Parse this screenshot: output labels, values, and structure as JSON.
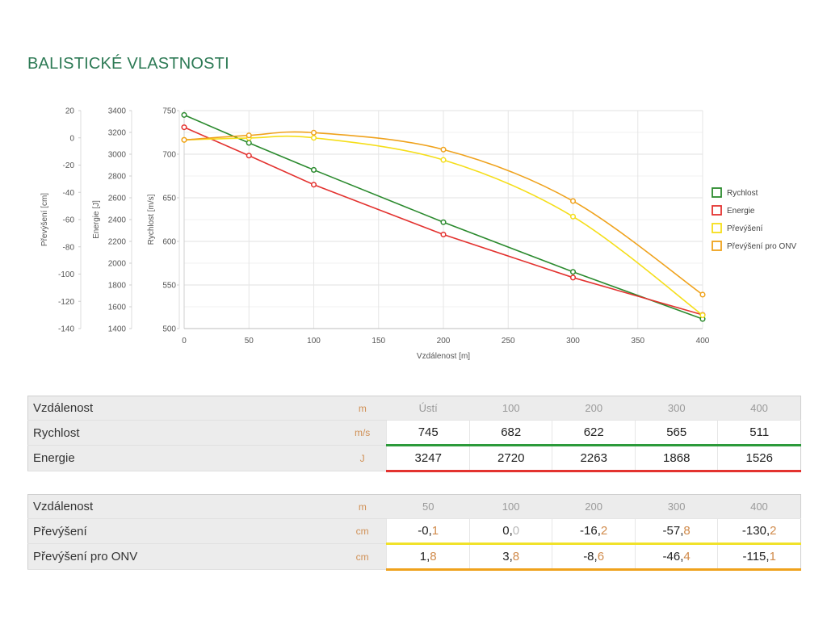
{
  "title": "BALISTICKÉ VLASTNOSTI",
  "colors": {
    "title": "#2d7a55",
    "rychlost": "#2b8a2e",
    "energie": "#e3322f",
    "prevyseni": "#f5de1a",
    "prevyseni_onv": "#efa21c",
    "unit": "#d09055"
  },
  "chart_data": {
    "type": "line",
    "xlabel": "Vzdálenost [m]",
    "x_ticks": [
      "0",
      "50",
      "100",
      "150",
      "200",
      "250",
      "300",
      "350",
      "400"
    ],
    "xlim": [
      0,
      400
    ],
    "axes": [
      {
        "id": "rychlost",
        "label": "Rychlost [m/s]",
        "ylim": [
          500,
          750
        ],
        "ticks": [
          "500",
          "550",
          "600",
          "650",
          "700",
          "750"
        ]
      },
      {
        "id": "energie",
        "label": "Energie [J]",
        "ylim": [
          1400,
          3400
        ],
        "ticks": [
          "1400",
          "1600",
          "1800",
          "2000",
          "2200",
          "2400",
          "2600",
          "2800",
          "3000",
          "3200",
          "3400"
        ]
      },
      {
        "id": "prevyseni",
        "label": "Převýšení [cm]",
        "ylim": [
          -140,
          20
        ],
        "ticks": [
          "-140",
          "-120",
          "-100",
          "-80",
          "-60",
          "-40",
          "-20",
          "0",
          "20"
        ]
      }
    ],
    "series": [
      {
        "name": "Rychlost",
        "axis": "rychlost",
        "color": "#2b8a2e",
        "x": [
          0,
          50,
          100,
          200,
          300,
          400
        ],
        "values": [
          745,
          713,
          682,
          622,
          565,
          511
        ]
      },
      {
        "name": "Energie",
        "axis": "energie",
        "color": "#e3322f",
        "x": [
          0,
          50,
          100,
          200,
          300,
          400
        ],
        "values": [
          3247,
          2987,
          2720,
          2263,
          1868,
          1526
        ]
      },
      {
        "name": "Převýšení",
        "axis": "prevyseni",
        "color": "#f5de1a",
        "x": [
          0,
          50,
          100,
          200,
          300,
          400
        ],
        "values": [
          -1.5,
          -0.1,
          0.0,
          -16.2,
          -57.8,
          -130.2
        ]
      },
      {
        "name": "Převýšení pro ONV",
        "axis": "prevyseni",
        "color": "#efa21c",
        "x": [
          0,
          50,
          100,
          200,
          300,
          400
        ],
        "values": [
          -1.5,
          1.8,
          3.8,
          -8.6,
          -46.4,
          -115.1
        ]
      }
    ],
    "grid": true,
    "legend_position": "right"
  },
  "table1": {
    "header": {
      "label": "Vzdálenost",
      "unit": "m",
      "cols": [
        "Ústí",
        "100",
        "200",
        "300",
        "400"
      ]
    },
    "rows": [
      {
        "label": "Rychlost",
        "unit": "m/s",
        "values": [
          "745",
          "682",
          "622",
          "565",
          "511"
        ]
      },
      {
        "label": "Energie",
        "unit": "J",
        "values": [
          "3247",
          "2720",
          "2263",
          "1868",
          "1526"
        ]
      }
    ]
  },
  "table2": {
    "header": {
      "label": "Vzdálenost",
      "unit": "m",
      "cols": [
        "50",
        "100",
        "200",
        "300",
        "400"
      ]
    },
    "rows": [
      {
        "label": "Převýšení",
        "unit": "cm",
        "values": [
          {
            "int": "-0",
            "dec": "1"
          },
          {
            "int": "0",
            "dec": "0"
          },
          {
            "int": "-16",
            "dec": "2"
          },
          {
            "int": "-57",
            "dec": "8"
          },
          {
            "int": "-130",
            "dec": "2"
          }
        ]
      },
      {
        "label": "Převýšení pro ONV",
        "unit": "cm",
        "values": [
          {
            "int": "1",
            "dec": "8"
          },
          {
            "int": "3",
            "dec": "8"
          },
          {
            "int": "-8",
            "dec": "6"
          },
          {
            "int": "-46",
            "dec": "4"
          },
          {
            "int": "-115",
            "dec": "1"
          }
        ]
      }
    ]
  }
}
